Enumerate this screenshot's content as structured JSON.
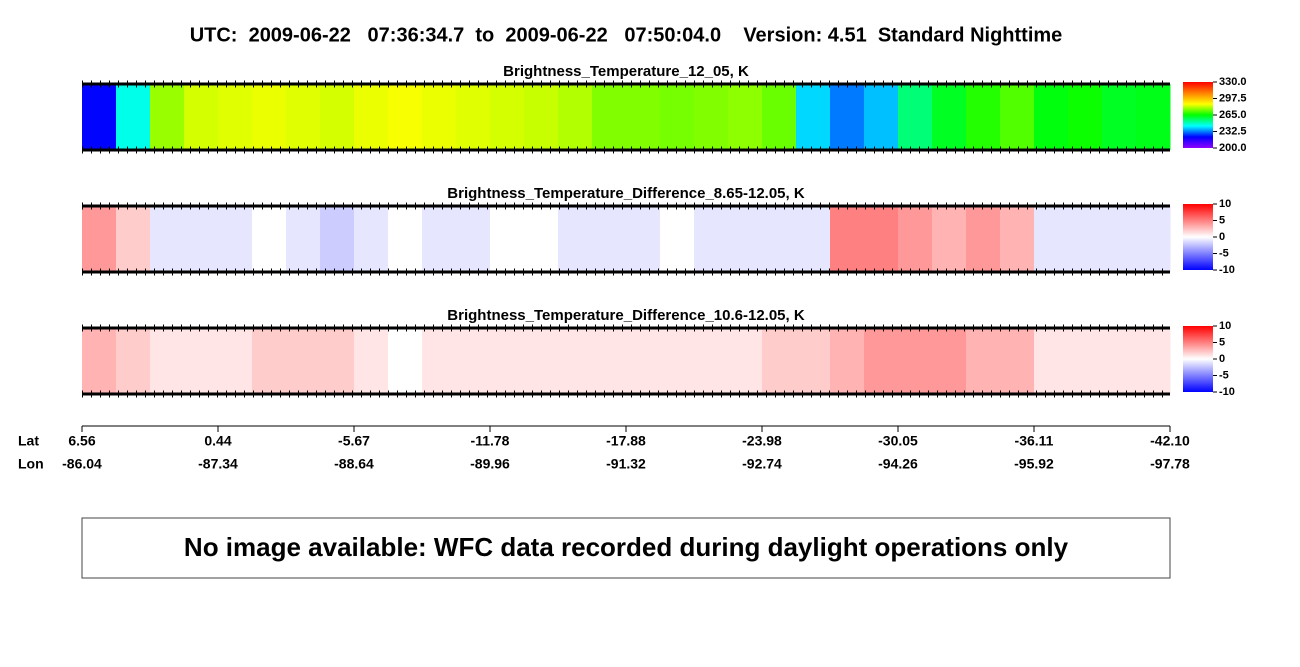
{
  "header": {
    "title": "UTC:  2009-06-22   07:36:34.7  to  2009-06-22   07:50:04.0    Version: 4.51  Standard Nighttime"
  },
  "panels": [
    {
      "type": "heatmap",
      "title": "Brightness_Temperature_12_05, K",
      "colormap": [
        "#9000ff",
        "#0000ff",
        "#00ffff",
        "#00ff00",
        "#ffff00",
        "#ff8000",
        "#ff0000"
      ],
      "clim": [
        200,
        330
      ],
      "cticks": [
        {
          "value": 330,
          "label": "330.0"
        },
        297.5,
        {
          "value": 265,
          "label": "265.0"
        },
        232.5,
        {
          "value": 200,
          "label": "200.0"
        }
      ],
      "values": [
        222,
        245,
        278,
        283,
        284,
        285,
        284,
        283,
        285,
        286,
        285,
        284,
        283,
        282,
        280,
        276,
        276,
        275,
        276,
        277,
        274,
        240,
        232,
        238,
        255,
        262,
        268,
        272,
        264,
        266,
        262,
        263
      ]
    },
    {
      "type": "heatmap",
      "title": "Brightness_Temperature_Difference_8.65-12.05, K",
      "colormap": [
        "#0000ff",
        "#ffffff",
        "#ff0000"
      ],
      "clim": [
        -10,
        10
      ],
      "cticks": [
        10,
        5,
        0,
        -5,
        -10
      ],
      "values": [
        4,
        2,
        -1,
        -1,
        -1,
        0,
        -1,
        -2,
        -1,
        0,
        -1,
        -1,
        0,
        0,
        -1,
        -1,
        -1,
        0,
        -1,
        -1,
        -1,
        -1,
        5,
        5,
        4,
        3,
        4,
        3,
        -1,
        -1,
        -1,
        -1
      ]
    },
    {
      "type": "heatmap",
      "title": "Brightness_Temperature_Difference_10.6-12.05, K",
      "colormap": [
        "#0000ff",
        "#ffffff",
        "#ff0000"
      ],
      "clim": [
        -10,
        10
      ],
      "cticks": [
        10,
        5,
        0,
        -5,
        -10
      ],
      "values": [
        3,
        2,
        1,
        1,
        1,
        2,
        2,
        2,
        1,
        0,
        1,
        1,
        1,
        1,
        1,
        1,
        1,
        1,
        1,
        1,
        2,
        2,
        3,
        4,
        4,
        4,
        3,
        3,
        1,
        1,
        1,
        1
      ]
    }
  ],
  "axis": {
    "lat_label": "Lat",
    "lon_label": "Lon",
    "lat": [
      6.56,
      0.44,
      -5.67,
      -11.78,
      -17.88,
      -23.98,
      -30.05,
      -36.11,
      {
        "value": -42.1,
        "label": "-42.10"
      }
    ],
    "lon": [
      -86.04,
      -87.34,
      -88.64,
      -89.96,
      -91.32,
      -92.74,
      -94.26,
      -95.92,
      -97.78
    ]
  },
  "message": "No image available: WFC data recorded during daylight operations only"
}
